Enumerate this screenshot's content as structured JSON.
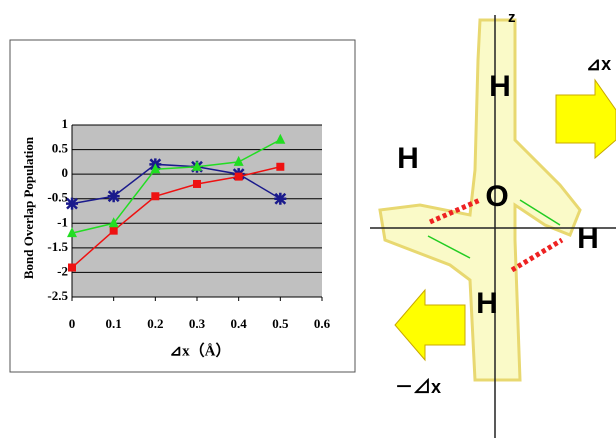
{
  "chart_data": {
    "type": "line",
    "y_label": "Bond Overlap Population",
    "x_label": "⊿x（Å）",
    "x": [
      0,
      0.1,
      0.2,
      0.3,
      0.4,
      0.5
    ],
    "xlim": [
      0,
      0.6
    ],
    "xticks": [
      0,
      0.1,
      0.2,
      0.3,
      0.4,
      0.5,
      0.6
    ],
    "ylim": [
      -2.5,
      1
    ],
    "yticks": [
      -2.5,
      -2,
      -1.5,
      -1,
      -0.5,
      0,
      0.5,
      1
    ],
    "grid": true,
    "series": [
      {
        "color": "#1a1a8c",
        "marker": "asterisk",
        "values": [
          -0.6,
          -0.45,
          0.2,
          0.15,
          0,
          -0.5
        ]
      },
      {
        "color": "#ee1111",
        "marker": "square",
        "values": [
          -1.9,
          -1.15,
          -0.45,
          -0.2,
          -0.05,
          0.15
        ]
      },
      {
        "color": "#22dd22",
        "marker": "triangle",
        "values": [
          -1.2,
          -1.0,
          0.1,
          0.15,
          0.25,
          0.7
        ]
      }
    ]
  },
  "diagram": {
    "axis_label": "z",
    "atoms": [
      "H",
      "H",
      "H",
      "H",
      "O"
    ],
    "shift_label": "⊿x",
    "neg_shift_label": "－⊿x"
  }
}
